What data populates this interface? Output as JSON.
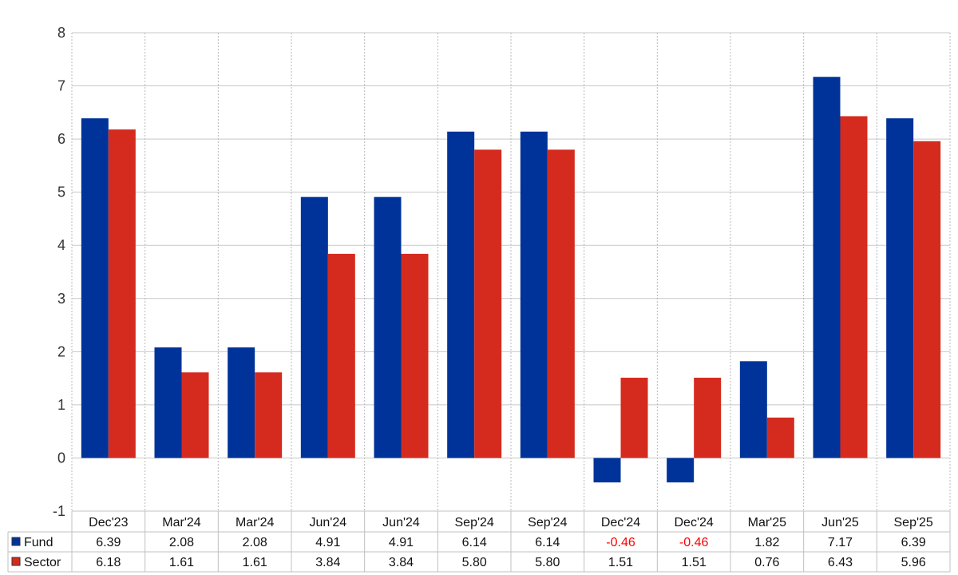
{
  "chart_data": {
    "type": "bar",
    "title": "",
    "xlabel": "",
    "ylabel": "",
    "ylim": [
      -1,
      8
    ],
    "yticks": [
      -1,
      0,
      1,
      2,
      3,
      4,
      5,
      6,
      7,
      8
    ],
    "grid": true,
    "legend": "data-table-left",
    "categories": [
      "Dec'23",
      "Mar'24",
      "Mar'24",
      "Jun'24",
      "Jun'24",
      "Sep'24",
      "Sep'24",
      "Dec'24",
      "Dec'24",
      "Mar'25",
      "Jun'25",
      "Sep'25"
    ],
    "series": [
      {
        "name": "Fund",
        "color": "#003399",
        "values": [
          6.39,
          2.08,
          2.08,
          4.91,
          4.91,
          6.14,
          6.14,
          -0.46,
          -0.46,
          1.82,
          7.17,
          6.39
        ],
        "labels": [
          "6.39",
          "2.08",
          "2.08",
          "4.91",
          "4.91",
          "6.14",
          "6.14",
          "-0.46",
          "-0.46",
          "1.82",
          "7.17",
          "6.39"
        ]
      },
      {
        "name": "Sector",
        "color": "#d52b1e",
        "values": [
          6.18,
          1.61,
          1.61,
          3.84,
          3.84,
          5.8,
          5.8,
          1.51,
          1.51,
          0.76,
          6.43,
          5.96
        ],
        "labels": [
          "6.18",
          "1.61",
          "1.61",
          "3.84",
          "3.84",
          "5.80",
          "5.80",
          "1.51",
          "1.51",
          "0.76",
          "6.43",
          "5.96"
        ]
      }
    ],
    "negative_label_color": "#ff0000"
  }
}
